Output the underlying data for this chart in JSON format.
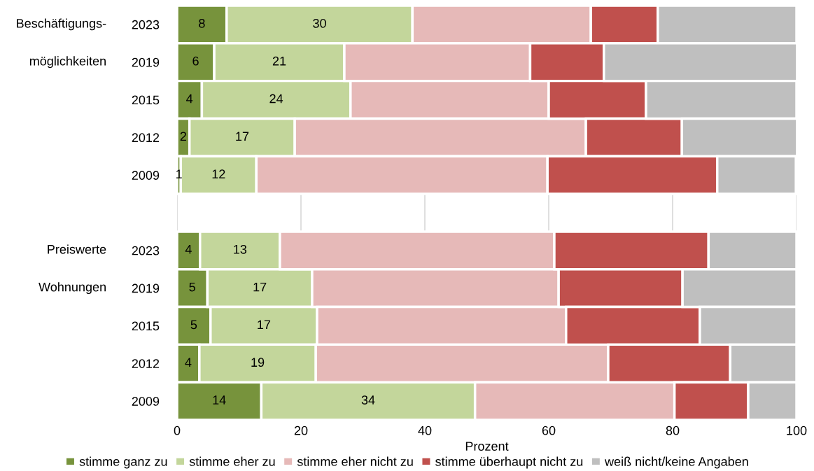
{
  "chart_data": {
    "type": "bar",
    "orientation": "horizontal",
    "stacked": true,
    "categories": [
      "2023",
      "2019",
      "2015",
      "2012",
      "2009",
      null,
      "2023",
      "2019",
      "2015",
      "2012",
      "2009"
    ],
    "series": [
      {
        "name": "stimme ganz zu",
        "color": "#77933c",
        "values": [
          8,
          6,
          4,
          2,
          0.6,
          null,
          3.7,
          4.9,
          5.4,
          3.6,
          13.6
        ],
        "value_labels": [
          "8",
          "6",
          "4",
          "2",
          "1",
          null,
          "4",
          "5",
          "5",
          "4",
          "14"
        ]
      },
      {
        "name": "stimme eher zu",
        "color": "#c3d69b",
        "values": [
          30,
          21,
          24,
          17,
          12.2,
          null,
          12.9,
          16.9,
          17.2,
          18.8,
          34.5
        ],
        "value_labels": [
          "30",
          "21",
          "24",
          "17",
          "12",
          null,
          "13",
          "17",
          "17",
          "19",
          "34"
        ]
      },
      {
        "name": "stimme eher nicht zu",
        "color": "#e6b9b8",
        "values": [
          28.8,
          30,
          32,
          47,
          47,
          null,
          44.3,
          39.8,
          40.2,
          47.2,
          32.2
        ]
      },
      {
        "name": "stimme überhaupt nicht zu",
        "color": "#c0504d",
        "values": [
          10.8,
          11.9,
          15.7,
          15.5,
          27.4,
          null,
          24.9,
          20,
          21.6,
          19.7,
          11.9
        ]
      },
      {
        "name": "weiß nicht/keine Angaben",
        "color": "#bfbfbf",
        "values": [
          22.4,
          31.2,
          24.3,
          18.6,
          12.7,
          null,
          14.2,
          18.4,
          15.6,
          10.7,
          7.8
        ]
      }
    ],
    "xlabel": "Prozent",
    "xlim": [
      0,
      100
    ],
    "xticks": [
      0,
      20,
      40,
      60,
      80,
      100
    ],
    "grid": "x",
    "legend": "bottom",
    "annotations": [
      "Beschäftigungs-\nmöglichkeiten",
      "Preiswerte\nWohnungen"
    ]
  }
}
